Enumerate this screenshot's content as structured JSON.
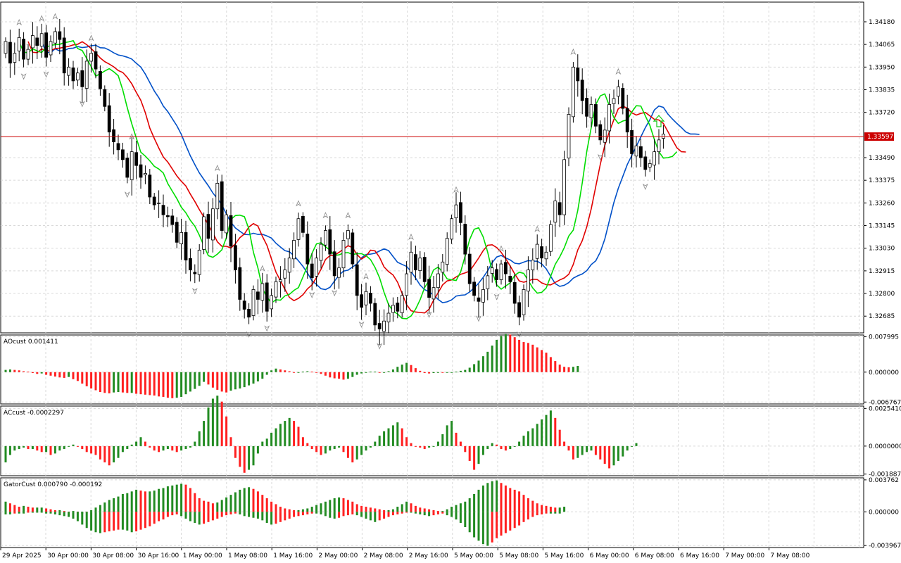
{
  "symbol_line": {
    "price": 1.33597,
    "price_label": "1.33597",
    "color": "#cc0000"
  },
  "colors": {
    "bull_body": "#ffffff",
    "bear_body": "#000000",
    "candle_outline": "#000000",
    "lips": "#00dd00",
    "teeth": "#e00000",
    "jaw": "#0050c8",
    "hist_up": "#228b22",
    "hist_down": "#ff2020",
    "grid": "#d8d8d8",
    "fractal": "#888888"
  },
  "main_axis": {
    "ticks": [
      "1.34180",
      "1.34065",
      "1.33950",
      "1.33835",
      "1.33720",
      "1.33490",
      "1.33375",
      "1.33260",
      "1.33145",
      "1.33030",
      "1.32915",
      "1.32800",
      "1.32685"
    ],
    "range": [
      1.326,
      1.3428
    ]
  },
  "time_axis": [
    "29 Apr 2025",
    "30 Apr 00:00",
    "30 Apr 08:00",
    "30 Apr 16:00",
    "1 May 00:00",
    "1 May 08:00",
    "1 May 16:00",
    "2 May 00:00",
    "2 May 08:00",
    "2 May 16:00",
    "5 May 00:00",
    "5 May 08:00",
    "5 May 16:00",
    "6 May 00:00",
    "6 May 08:00",
    "6 May 16:00",
    "7 May 00:00",
    "7 May 08:00"
  ],
  "ao": {
    "title": "AOcust 0.001411",
    "ticks": [
      "0.007995",
      "0.000000",
      "-0.006767"
    ],
    "range": [
      -0.0072,
      0.0084
    ]
  },
  "ac": {
    "title": "ACcust -0.0002297",
    "ticks": [
      "0.0025410",
      "0.0000000",
      "-0.0018873"
    ],
    "range": [
      -0.002,
      0.0027
    ]
  },
  "gator": {
    "title": "GatorCust 0.000790 -0.000192",
    "ticks": [
      "0.003762",
      "0.000000",
      "-0.003967"
    ],
    "range": [
      -0.0042,
      0.004
    ]
  },
  "signal_arrow": {
    "name": "up-arrow-icon",
    "color": "#22cc22"
  },
  "chart_data": {
    "type": "candlestick",
    "closes": [
      1.3408,
      1.3397,
      1.3402,
      1.341,
      1.3399,
      1.3404,
      1.3411,
      1.3406,
      1.3412,
      1.34,
      1.3408,
      1.3413,
      1.3409,
      1.3392,
      1.3395,
      1.3388,
      1.3392,
      1.3385,
      1.3398,
      1.3402,
      1.3394,
      1.3384,
      1.3375,
      1.3362,
      1.3357,
      1.3353,
      1.3348,
      1.3339,
      1.3352,
      1.3345,
      1.3339,
      1.3341,
      1.3329,
      1.3325,
      1.3326,
      1.332,
      1.3319,
      1.3315,
      1.3306,
      1.3311,
      1.3297,
      1.3292,
      1.329,
      1.3302,
      1.3319,
      1.3308,
      1.3323,
      1.3336,
      1.3312,
      1.332,
      1.3304,
      1.3292,
      1.3277,
      1.3272,
      1.3268,
      1.3282,
      1.3277,
      1.3285,
      1.3271,
      1.3279,
      1.3286,
      1.3287,
      1.3292,
      1.3298,
      1.3307,
      1.3318,
      1.3311,
      1.3295,
      1.3288,
      1.3298,
      1.3305,
      1.3312,
      1.33,
      1.3289,
      1.3293,
      1.3307,
      1.3312,
      1.3295,
      1.3279,
      1.3273,
      1.3281,
      1.3275,
      1.3264,
      1.3262,
      1.3266,
      1.327,
      1.3274,
      1.3271,
      1.3279,
      1.329,
      1.3301,
      1.3292,
      1.3298,
      1.3286,
      1.3278,
      1.3283,
      1.329,
      1.3296,
      1.3308,
      1.3318,
      1.3325,
      1.3316,
      1.33,
      1.3285,
      1.3279,
      1.3276,
      1.3282,
      1.3289,
      1.3293,
      1.3287,
      1.3295,
      1.329,
      1.3286,
      1.3275,
      1.3268,
      1.3282,
      1.3292,
      1.3297,
      1.3305,
      1.3298,
      1.3301,
      1.3315,
      1.3327,
      1.332,
      1.3348,
      1.3371,
      1.3395,
      1.3388,
      1.3378,
      1.337,
      1.3376,
      1.3365,
      1.3358,
      1.3363,
      1.3376,
      1.3379,
      1.3385,
      1.3374,
      1.3362,
      1.3351,
      1.3355,
      1.3349,
      1.3343,
      1.3346,
      1.3352,
      1.3358,
      1.3361
    ],
    "ao": [
      0.0005,
      0.0006,
      0.0005,
      0.0004,
      0.0002,
      0.0001,
      -0.0002,
      -0.0004,
      -0.0003,
      -0.0006,
      -0.0008,
      -0.001,
      -0.0012,
      -0.0013,
      -0.0011,
      -0.0016,
      -0.002,
      -0.0026,
      -0.0032,
      -0.0037,
      -0.0041,
      -0.0045,
      -0.0047,
      -0.0048,
      -0.0046,
      -0.0045,
      -0.0046,
      -0.0047,
      -0.0047,
      -0.0049,
      -0.005,
      -0.0051,
      -0.0052,
      -0.0053,
      -0.0055,
      -0.0056,
      -0.0058,
      -0.0059,
      -0.0058,
      -0.0056,
      -0.005,
      -0.0044,
      -0.0038,
      -0.0031,
      -0.0022,
      -0.0028,
      -0.0035,
      -0.004,
      -0.0044,
      -0.0046,
      -0.0042,
      -0.0039,
      -0.0037,
      -0.0034,
      -0.003,
      -0.0026,
      -0.0021,
      -0.0015,
      -0.0006,
      0.0004,
      0.0008,
      0.0006,
      0.0004,
      0.0002,
      -0.0001,
      -0.0001,
      0.0001,
      0.0002,
      0.0001,
      0.0,
      -0.0004,
      -0.0008,
      -0.0012,
      -0.0014,
      -0.0015,
      -0.0017,
      -0.0015,
      -0.0011,
      -0.0006,
      -0.0003,
      -0.0001,
      0.0001,
      0.0001,
      0.0,
      0.0,
      0.0002,
      0.0006,
      0.0012,
      0.0017,
      0.0021,
      0.0016,
      0.0009,
      0.0003,
      -0.0002,
      -0.0003,
      -0.0002,
      0.0,
      -0.0001,
      -0.0001,
      0.0,
      0.0001,
      0.0003,
      0.0005,
      0.001,
      0.0018,
      0.0026,
      0.0036,
      0.0046,
      0.006,
      0.0073,
      0.0082,
      0.0086,
      0.0085,
      0.0079,
      0.0073,
      0.0068,
      0.0066,
      0.0062,
      0.0056,
      0.005,
      0.0044,
      0.0034,
      0.0025,
      0.0017,
      0.0012,
      0.0011,
      0.0012,
      0.0014
    ],
    "ac": [
      -0.0011,
      -0.0006,
      -0.0003,
      -0.0002,
      -0.0001,
      -0.0002,
      -0.0002,
      -0.0003,
      -0.0004,
      -0.0004,
      -0.0006,
      -0.0005,
      -0.0003,
      -0.0002,
      0.0,
      0.0001,
      0.0,
      -0.0002,
      -0.0004,
      -0.0005,
      -0.0006,
      -0.0009,
      -0.0011,
      -0.0013,
      -0.0011,
      -0.0008,
      -0.0004,
      -0.0002,
      0.0001,
      0.0003,
      0.0006,
      0.0003,
      -0.0001,
      -0.0003,
      -0.0004,
      -0.0003,
      -0.0002,
      -0.0003,
      -0.0004,
      -0.0003,
      -0.0002,
      -0.0001,
      0.0003,
      0.001,
      0.0017,
      0.0026,
      0.0032,
      0.0034,
      0.003,
      0.002,
      0.0006,
      -0.0008,
      -0.0014,
      -0.0018,
      -0.0016,
      -0.0013,
      -0.0005,
      0.0003,
      0.0005,
      0.0009,
      0.0012,
      0.0015,
      0.0017,
      0.0019,
      0.0017,
      0.0013,
      0.0006,
      0.0002,
      -0.0002,
      -0.0004,
      -0.0006,
      -0.0005,
      -0.0003,
      -0.0002,
      -0.0001,
      -0.0004,
      -0.0008,
      -0.0011,
      -0.0009,
      -0.0006,
      -0.0003,
      -0.0001,
      0.0003,
      0.0007,
      0.001,
      0.0012,
      0.0014,
      0.0016,
      0.0012,
      0.0006,
      0.0002,
      0.0,
      -0.0001,
      -0.0002,
      -0.0001,
      0.0,
      0.0003,
      0.0008,
      0.0014,
      0.0017,
      0.0009,
      0.0003,
      -0.0004,
      -0.001,
      -0.0016,
      -0.0012,
      -0.0006,
      -0.0002,
      0.0002,
      0.0001,
      -0.0002,
      -0.0003,
      -0.0002,
      0.0,
      0.0003,
      0.0007,
      0.001,
      0.0012,
      0.0015,
      0.0018,
      0.0021,
      0.0024,
      0.0019,
      0.0011,
      0.0003,
      -0.0003,
      -0.0009,
      -0.0008,
      -0.0006,
      -0.0004,
      -0.0003,
      -0.0006,
      -0.0009,
      -0.0012,
      -0.0015,
      -0.0013,
      -0.001,
      -0.0007,
      -0.0003,
      0.0,
      0.0002
    ],
    "gator_up": [
      0.0012,
      0.001,
      0.0008,
      0.0006,
      0.0007,
      0.0006,
      0.0005,
      0.0005,
      0.0005,
      0.0004,
      0.0003,
      0.0002,
      0.0002,
      0.0001,
      0.0,
      0.0001,
      0.0,
      -0.0002,
      0.0,
      0.0002,
      0.0005,
      0.0008,
      0.0011,
      0.0014,
      0.0016,
      0.0018,
      0.0021,
      0.0022,
      0.0024,
      0.0026,
      0.0025,
      0.0024,
      0.0024,
      0.0025,
      0.0027,
      0.0028,
      0.003,
      0.0031,
      0.0032,
      0.0033,
      0.0032,
      0.0028,
      0.0022,
      0.0016,
      0.0013,
      0.0012,
      0.001,
      0.0011,
      0.0014,
      0.0017,
      0.002,
      0.0023,
      0.0026,
      0.0028,
      0.0029,
      0.0027,
      0.0024,
      0.002,
      0.0016,
      0.0012,
      0.0009,
      0.0006,
      0.0004,
      0.0003,
      0.0002,
      0.0002,
      0.0003,
      0.0004,
      0.0006,
      0.0008,
      0.001,
      0.0012,
      0.0014,
      0.0016,
      0.0017,
      0.0016,
      0.0014,
      0.0012,
      0.0009,
      0.0007,
      0.0006,
      0.0005,
      0.0004,
      0.0003,
      0.0002,
      0.0002,
      0.0003,
      0.0006,
      0.0009,
      0.0012,
      0.001,
      0.0007,
      0.0005,
      0.0004,
      0.0003,
      0.0002,
      0.0001,
      0.0001,
      0.0003,
      0.0006,
      0.0008,
      0.001,
      0.0012,
      0.0016,
      0.0021,
      0.0026,
      0.0031,
      0.0034,
      0.0036,
      0.0037,
      0.0034,
      0.0031,
      0.0028,
      0.0026,
      0.0024,
      0.002,
      0.0016,
      0.0013,
      0.001,
      0.0008,
      0.0007,
      0.0006,
      0.0005,
      0.0005,
      0.0006
    ],
    "gator_down": [
      -0.0003,
      -0.0003,
      -0.0002,
      -0.0002,
      -0.0002,
      -0.0001,
      -0.0001,
      -0.0001,
      -0.0001,
      -0.0002,
      -0.0002,
      -0.0003,
      -0.0004,
      -0.0005,
      -0.0006,
      -0.0008,
      -0.0011,
      -0.0015,
      -0.0019,
      -0.0022,
      -0.0024,
      -0.0025,
      -0.0024,
      -0.0023,
      -0.0022,
      -0.0021,
      -0.0021,
      -0.0022,
      -0.0024,
      -0.0023,
      -0.0021,
      -0.0019,
      -0.0017,
      -0.0014,
      -0.0011,
      -0.0009,
      -0.0006,
      -0.0004,
      -0.0003,
      -0.0005,
      -0.0008,
      -0.0011,
      -0.0013,
      -0.0015,
      -0.0014,
      -0.0012,
      -0.001,
      -0.0008,
      -0.0006,
      -0.0004,
      -0.0003,
      -0.0002,
      -0.0003,
      -0.0005,
      -0.0006,
      -0.0007,
      -0.0008,
      -0.001,
      -0.0013,
      -0.0015,
      -0.0014,
      -0.0012,
      -0.001,
      -0.0008,
      -0.0006,
      -0.0005,
      -0.0004,
      -0.0003,
      -0.0002,
      -0.0002,
      -0.0003,
      -0.0005,
      -0.0007,
      -0.0008,
      -0.0007,
      -0.0005,
      -0.0004,
      -0.0003,
      -0.0004,
      -0.0006,
      -0.0008,
      -0.001,
      -0.0012,
      -0.001,
      -0.0008,
      -0.0006,
      -0.0004,
      -0.0003,
      -0.0002,
      -0.0001,
      -0.0001,
      -0.0002,
      -0.0003,
      -0.0004,
      -0.0005,
      -0.0004,
      -0.0003,
      -0.0002,
      -0.0004,
      -0.0006,
      -0.0009,
      -0.0013,
      -0.0018,
      -0.0024,
      -0.003,
      -0.0034,
      -0.0038,
      -0.004,
      -0.0036,
      -0.0031,
      -0.0028,
      -0.0025,
      -0.0022,
      -0.0019,
      -0.0016,
      -0.0012,
      -0.0009,
      -0.0006,
      -0.0004,
      -0.0003,
      -0.0002,
      -0.0002,
      -0.0002,
      -0.0002
    ]
  }
}
